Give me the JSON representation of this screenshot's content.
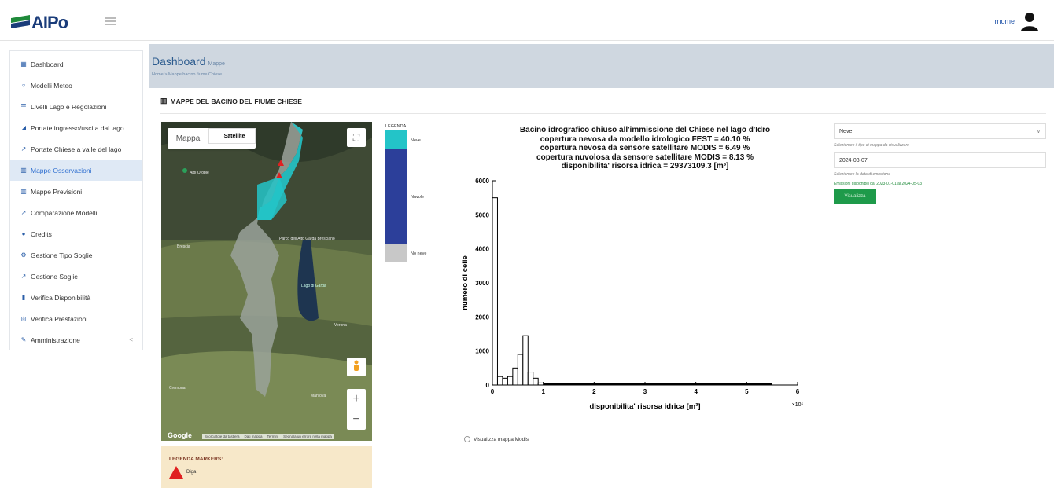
{
  "app": {
    "logo_text": "AIPo",
    "user_name": "rnome"
  },
  "sidebar": {
    "items": [
      {
        "label": "Dashboard",
        "icon": "dashboard-icon"
      },
      {
        "label": "Modelli Meteo",
        "icon": "circle-icon"
      },
      {
        "label": "Livelli Lago e Regolazioni",
        "icon": "list-icon"
      },
      {
        "label": "Portate ingresso/uscita dal lago",
        "icon": "area-chart-icon"
      },
      {
        "label": "Portate Chiese a valle del lago",
        "icon": "line-chart-icon"
      },
      {
        "label": "Mappe Osservazioni",
        "icon": "map-icon",
        "active": true
      },
      {
        "label": "Mappe Previsioni",
        "icon": "map-icon"
      },
      {
        "label": "Comparazione Modelli",
        "icon": "line-chart-icon"
      },
      {
        "label": "Credits",
        "icon": "info-icon"
      },
      {
        "label": "Gestione Tipo Soglie",
        "icon": "gears-icon"
      },
      {
        "label": "Gestione Soglie",
        "icon": "line-chart-icon"
      },
      {
        "label": "Verifica Disponibilità",
        "icon": "bar-chart-icon"
      },
      {
        "label": "Verifica Prestazioni",
        "icon": "target-icon"
      },
      {
        "label": "Amministrazione",
        "icon": "edit-icon",
        "chevron": "<"
      }
    ]
  },
  "header": {
    "title": "Dashboard",
    "subtitle": "Mappe",
    "breadcrumb": "Home > Mappe bacino fiume Chiese"
  },
  "section": {
    "title": "MAPPE DEL BACINO DEL FIUME CHIESE"
  },
  "map": {
    "tab_map": "Mappa",
    "tab_satellite": "Satellite",
    "google": "Google",
    "attribution": [
      "Scorciatoie da tastiera",
      "Dati mappa",
      "Termini",
      "Segnala un errore nella mappa"
    ],
    "place_labels": [
      "Alpi Orobie",
      "Brescia",
      "Cremona",
      "Mantova",
      "Verona",
      "Parco dell'Alto Garda Bresciano",
      "Lago di Garda"
    ]
  },
  "markers_legend": {
    "title": "LEGENDA MARKERS:",
    "item": "Diga"
  },
  "legend": {
    "title": "LEGENDA",
    "snow": "Neve",
    "cloud": "Nuvole",
    "none": "No neve",
    "colors": {
      "snow": "#23c4c8",
      "cloud": "#2c3f9a",
      "none": "#c8c8c8"
    }
  },
  "chart_title_lines": [
    "Bacino idrografico chiuso all'immissione del Chiese nel lago d'Idro",
    "copertura nevosa da modello idrologico FEST = 40.10 %",
    "copertura nevosa da sensore satellitare  MODIS = 6.49 %",
    "copertura nuvolosa da sensore satellitare  MODIS = 8.13 %",
    "disponibilita' risorsa idrica = 29373109.3 [m³]"
  ],
  "chart_data": {
    "type": "bar",
    "xlabel": "disponibilita' risorsa idrica [m³]",
    "ylabel": "numero di celle",
    "x_multiplier": "×10⁵",
    "xlim": [
      0,
      6
    ],
    "ylim": [
      0,
      6000
    ],
    "xticks": [
      "0",
      "1",
      "2",
      "3",
      "4",
      "5",
      "6"
    ],
    "yticks": [
      "0",
      "1000",
      "2000",
      "3000",
      "4000",
      "5000",
      "6000"
    ],
    "bin_width": 0.1,
    "bin_start": [
      0.0,
      0.1,
      0.2,
      0.3,
      0.4,
      0.5,
      0.6,
      0.7,
      0.8,
      0.9
    ],
    "values": [
      5500,
      250,
      200,
      250,
      500,
      900,
      1450,
      380,
      200,
      60
    ]
  },
  "modis_toggle": "Visualizza mappa Modis",
  "controls": {
    "map_type_value": "Neve",
    "map_type_hint": "Selezionare il tipo di mappa da visualizzare",
    "date_value": "2024-03-07",
    "date_hint": "Selezionare la data di emissione",
    "availability": "Emissioni disponibili dal 2023-01-01 al 2024-05-03",
    "button": "Visualizza"
  }
}
